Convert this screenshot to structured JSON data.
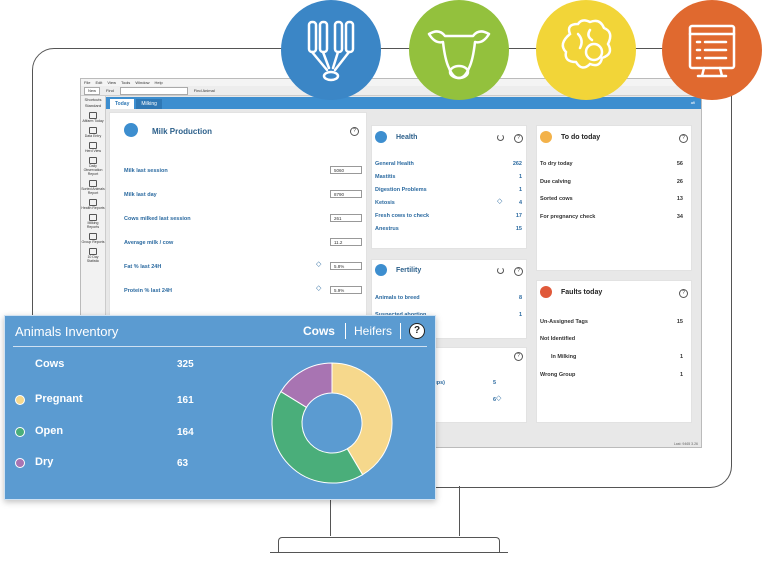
{
  "feature_icons": [
    {
      "icon": "milking-cluster-icon",
      "color": "#3b86c6"
    },
    {
      "icon": "cow-head-icon",
      "color": "#93c13d"
    },
    {
      "icon": "brain-gear-icon",
      "color": "#f2d538"
    },
    {
      "icon": "checklist-report-icon",
      "color": "#e0692f"
    }
  ],
  "app": {
    "menu": [
      "File",
      "Edit",
      "View",
      "Tools",
      "Window",
      "Help"
    ],
    "toolbar": {
      "new": "New",
      "find": "Find",
      "find_animal": "Find Animal"
    },
    "sidebar": {
      "header": "Shortcuts",
      "standard": "Standard",
      "items": [
        "Afifarm Today",
        "Data Entry",
        "Herd View",
        "Daily Observation Report",
        "Sorted Animals Report",
        "Health Reports",
        "Milking Reports",
        "Group Reports",
        "10 Day Statistic"
      ]
    },
    "tabs": [
      "Today",
      "Milking"
    ],
    "user": "afi"
  },
  "milk_production": {
    "title": "Milk Production",
    "rows": [
      {
        "label": "Milk last session",
        "value": "5060"
      },
      {
        "label": "Milk last day",
        "value": "8790"
      },
      {
        "label": "Cows milked last session",
        "value": "261"
      },
      {
        "label": "Average milk / cow",
        "value": "11.2"
      },
      {
        "label": "Fat % last 24H",
        "value": "5.8%"
      },
      {
        "label": "Protein % last 24H",
        "value": "5.9%"
      }
    ]
  },
  "health": {
    "title": "Health",
    "rows": [
      {
        "label": "General Health",
        "value": "262"
      },
      {
        "label": "Mastitis",
        "value": "1"
      },
      {
        "label": "Digestion Problems",
        "value": "1"
      },
      {
        "label": "Ketosis",
        "value": "4"
      },
      {
        "label": "Fresh cows to check",
        "value": "17"
      },
      {
        "label": "Anestrus",
        "value": "15"
      }
    ]
  },
  "fertility": {
    "title": "Fertility",
    "rows": [
      {
        "label": "Animals to breed",
        "value": "8"
      },
      {
        "label": "Suspected abortion",
        "value": "1"
      }
    ]
  },
  "groups_panel": {
    "rows": [
      {
        "label": "oups)",
        "value": "5"
      },
      {
        "label": "",
        "value": "6"
      }
    ]
  },
  "todo": {
    "title": "To do today",
    "rows": [
      {
        "label": "To dry today",
        "value": "56"
      },
      {
        "label": "Due calving",
        "value": "26"
      },
      {
        "label": "Sorted cows",
        "value": "13"
      },
      {
        "label": "For pregnancy check",
        "value": "34"
      }
    ]
  },
  "faults": {
    "title": "Faults today",
    "rows": [
      {
        "label": "Un-Assigned Tags",
        "value": "15"
      },
      {
        "label": "Not Identified",
        "value": ""
      },
      {
        "label": "In Milking",
        "value": "1"
      },
      {
        "label": "Wrong Group",
        "value": "1"
      }
    ]
  },
  "status_bar": "Last: 9465 3.26",
  "inventory": {
    "title": "Animals Inventory",
    "tabs": {
      "cows": "Cows",
      "heifers": "Heifers",
      "help": "?"
    },
    "total": {
      "label": "Cows",
      "value": "325"
    },
    "items": [
      {
        "label": "Pregnant",
        "value": "161",
        "color": "#f6d88c"
      },
      {
        "label": "Open",
        "value": "164",
        "color": "#4aae7a"
      },
      {
        "label": "Dry",
        "value": "63",
        "color": "#a874b2"
      }
    ]
  },
  "chart_data": {
    "type": "pie",
    "categories": [
      "Pregnant",
      "Open",
      "Dry"
    ],
    "values": [
      161,
      164,
      63
    ],
    "colors": [
      "#f6d88c",
      "#4aae7a",
      "#a874b2"
    ]
  }
}
